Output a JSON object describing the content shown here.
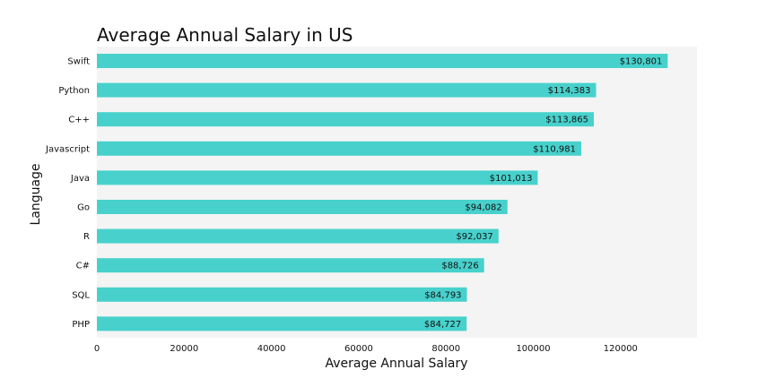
{
  "chart_data": {
    "type": "bar",
    "orientation": "horizontal",
    "title": "Average Annual Salary in US",
    "xlabel": "Average Annual Salary",
    "ylabel": "Language",
    "categories": [
      "Swift",
      "Python",
      "C++",
      "Javascript",
      "Java",
      "Go",
      "R",
      "C#",
      "SQL",
      "PHP"
    ],
    "values": [
      130801,
      114383,
      113865,
      110981,
      101013,
      94082,
      92037,
      88726,
      84793,
      84727
    ],
    "value_labels": [
      "$130,801",
      "$114,383",
      "$113,865",
      "$110,981",
      "$101,013",
      "$94,082",
      "$92,037",
      "$88,726",
      "$84,793",
      "$84,727"
    ],
    "xticks": [
      0,
      20000,
      40000,
      60000,
      80000,
      100000,
      120000
    ],
    "xlim": [
      0,
      137500
    ],
    "grid": false,
    "bar_color": "#48d1cc",
    "background_color": "#f4f4f4"
  }
}
